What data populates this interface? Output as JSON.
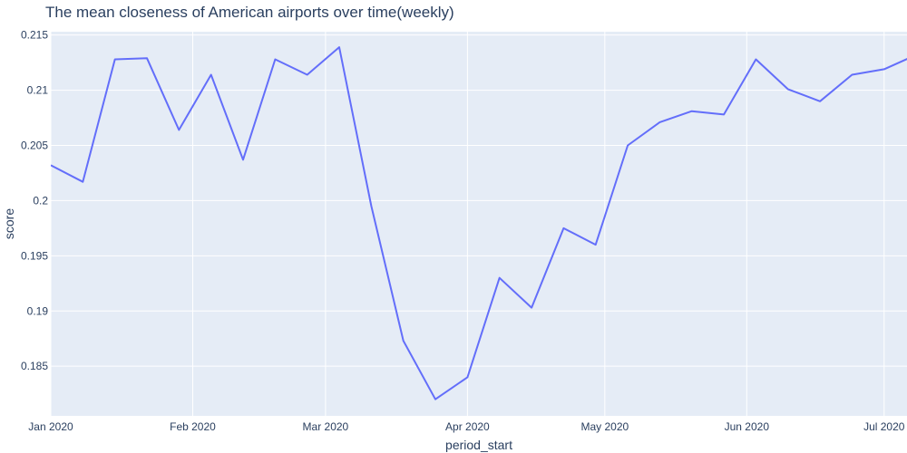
{
  "chart_data": {
    "type": "line",
    "title": "The mean closeness of American airports over time(weekly)",
    "xlabel": "period_start",
    "ylabel": "score",
    "x_tick_labels": [
      "Jan 2020",
      "Feb 2020",
      "Mar 2020",
      "Apr 2020",
      "May 2020",
      "Jun 2020",
      "Jul 2020"
    ],
    "x_tick_dates": [
      "2020-01-01",
      "2020-02-01",
      "2020-03-01",
      "2020-04-01",
      "2020-05-01",
      "2020-06-01",
      "2020-07-01"
    ],
    "y_ticks": [
      0.185,
      0.19,
      0.195,
      0.2,
      0.205,
      0.21,
      0.215
    ],
    "y_tick_labels": [
      "0.185",
      "0.19",
      "0.195",
      "0.2",
      "0.205",
      "0.21",
      "0.215"
    ],
    "xlim": [
      "2020-01-01",
      "2020-07-06"
    ],
    "ylim": [
      0.1805,
      0.2153
    ],
    "grid": true,
    "colors": {
      "line": "#636efa",
      "plot_bg": "#e5ecf6",
      "grid": "#ffffff",
      "text": "#2a3f5f"
    },
    "series": [
      {
        "x": [
          "2020-01-01",
          "2020-01-08",
          "2020-01-15",
          "2020-01-22",
          "2020-01-29",
          "2020-02-05",
          "2020-02-12",
          "2020-02-19",
          "2020-02-26",
          "2020-03-04",
          "2020-03-11",
          "2020-03-18",
          "2020-03-25",
          "2020-04-01",
          "2020-04-08",
          "2020-04-15",
          "2020-04-22",
          "2020-04-29",
          "2020-05-06",
          "2020-05-13",
          "2020-05-20",
          "2020-05-27",
          "2020-06-03",
          "2020-06-10",
          "2020-06-17",
          "2020-06-24",
          "2020-07-01",
          "2020-07-08"
        ],
        "values": [
          0.2032,
          0.2017,
          0.2128,
          0.2129,
          0.2064,
          0.2114,
          0.2037,
          0.2128,
          0.2114,
          0.2139,
          0.1995,
          0.1873,
          0.182,
          0.184,
          0.193,
          0.1903,
          0.1975,
          0.196,
          0.205,
          0.2071,
          0.2081,
          0.2078,
          0.2128,
          0.2101,
          0.209,
          0.2114,
          0.2119,
          0.2132
        ]
      }
    ]
  }
}
